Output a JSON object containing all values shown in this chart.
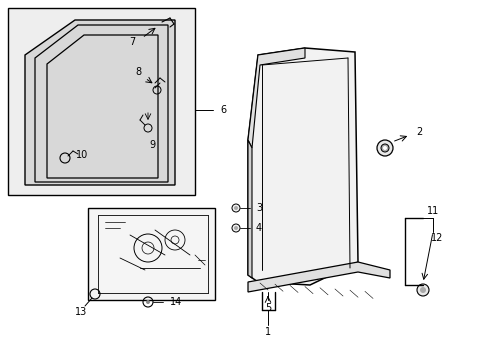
{
  "bg_color": "#ffffff",
  "line_color": "#000000",
  "gray_fill": "#e8e8e8"
}
